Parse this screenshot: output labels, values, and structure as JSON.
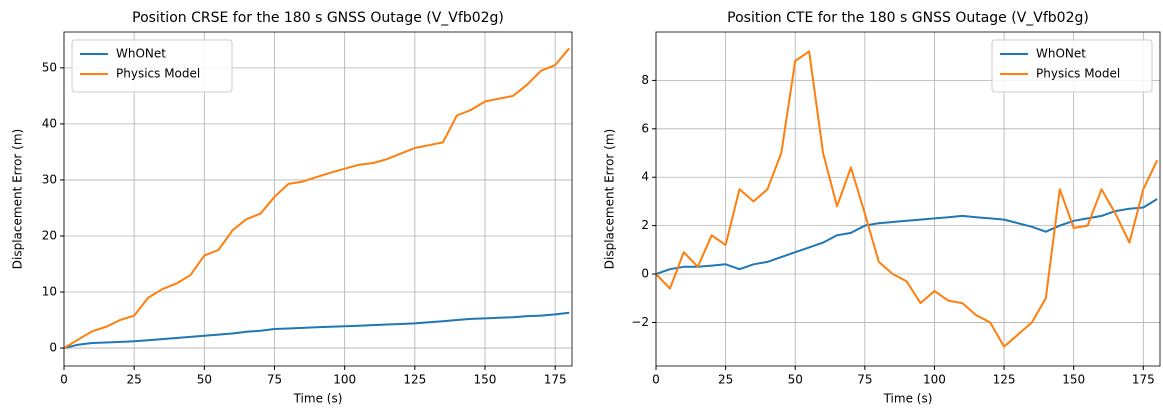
{
  "chart_data": [
    {
      "type": "line",
      "title": "Position CRSE for the 180 s GNSS Outage (V_Vfb02g)",
      "xlabel": "Time (s)",
      "ylabel": "Displacement Error (m)",
      "x": [
        0,
        5,
        10,
        15,
        20,
        25,
        30,
        35,
        40,
        45,
        50,
        55,
        60,
        65,
        70,
        75,
        80,
        85,
        90,
        95,
        100,
        105,
        110,
        115,
        120,
        125,
        130,
        135,
        140,
        145,
        150,
        155,
        160,
        165,
        170,
        175,
        180
      ],
      "series": [
        {
          "name": "WhONet",
          "color": "#1f77b4",
          "values": [
            0,
            0.6,
            0.9,
            1,
            1.1,
            1.2,
            1.4,
            1.6,
            1.8,
            2,
            2.2,
            2.4,
            2.6,
            2.9,
            3.1,
            3.4,
            3.5,
            3.6,
            3.7,
            3.8,
            3.9,
            4,
            4.1,
            4.2,
            4.3,
            4.4,
            4.6,
            4.8,
            5,
            5.2,
            5.3,
            5.4,
            5.5,
            5.7,
            5.8,
            6,
            6.3
          ]
        },
        {
          "name": "Physics Model",
          "color": "#ff7f0e",
          "values": [
            0,
            1.5,
            3,
            3.8,
            5,
            5.8,
            9,
            10.5,
            11.5,
            13,
            16.5,
            17.5,
            21,
            23,
            24,
            27,
            29.3,
            29.7,
            30.5,
            31.3,
            32,
            32.7,
            33,
            33.7,
            34.7,
            35.7,
            36.2,
            36.7,
            41.5,
            42.5,
            44,
            44.5,
            45,
            47,
            49.5,
            50.5,
            53.5
          ]
        }
      ],
      "xlim": [
        0,
        181
      ],
      "xticks": [
        0,
        25,
        50,
        75,
        100,
        125,
        150,
        175
      ],
      "ylim": [
        -3.2,
        56.4
      ],
      "yticks": [
        0,
        10,
        20,
        30,
        40,
        50
      ],
      "grid": true,
      "legend": "upper left"
    },
    {
      "type": "line",
      "title": "Position CTE for the 180 s GNSS Outage (V_Vfb02g)",
      "xlabel": "Time (s)",
      "ylabel": "Displacement Error (m)",
      "x": [
        0,
        5,
        10,
        15,
        20,
        25,
        30,
        35,
        40,
        45,
        50,
        55,
        60,
        65,
        70,
        75,
        80,
        85,
        90,
        95,
        100,
        105,
        110,
        115,
        120,
        125,
        130,
        135,
        140,
        145,
        150,
        155,
        160,
        165,
        170,
        175,
        180
      ],
      "series": [
        {
          "name": "WhONet",
          "color": "#1f77b4",
          "values": [
            0,
            0.2,
            0.3,
            0.3,
            0.35,
            0.4,
            0.2,
            0.4,
            0.5,
            0.7,
            0.9,
            1.1,
            1.3,
            1.6,
            1.7,
            2,
            2.1,
            2.15,
            2.2,
            2.25,
            2.3,
            2.35,
            2.4,
            2.35,
            2.3,
            2.25,
            2.1,
            1.95,
            1.75,
            2,
            2.2,
            2.3,
            2.4,
            2.6,
            2.7,
            2.75,
            3.1
          ]
        },
        {
          "name": "Physics Model",
          "color": "#ff7f0e",
          "values": [
            0,
            -0.6,
            0.9,
            0.3,
            1.6,
            1.2,
            3.5,
            3,
            3.5,
            5,
            8.8,
            9.2,
            5,
            2.8,
            4.4,
            2.5,
            0.5,
            0,
            -0.3,
            -1.2,
            -0.7,
            -1.1,
            -1.2,
            -1.7,
            -2,
            -3,
            -2.5,
            -2,
            -1,
            3.5,
            1.9,
            2,
            3.5,
            2.5,
            1.3,
            3.5,
            4.7
          ]
        }
      ],
      "xlim": [
        0,
        181
      ],
      "xticks": [
        0,
        25,
        50,
        75,
        100,
        125,
        150,
        175
      ],
      "ylim": [
        -3.8,
        10
      ],
      "yticks": [
        {
          "value": -2,
          "label": "−2"
        },
        0,
        2,
        4,
        6,
        8
      ],
      "grid": true,
      "legend": "upper right"
    }
  ]
}
